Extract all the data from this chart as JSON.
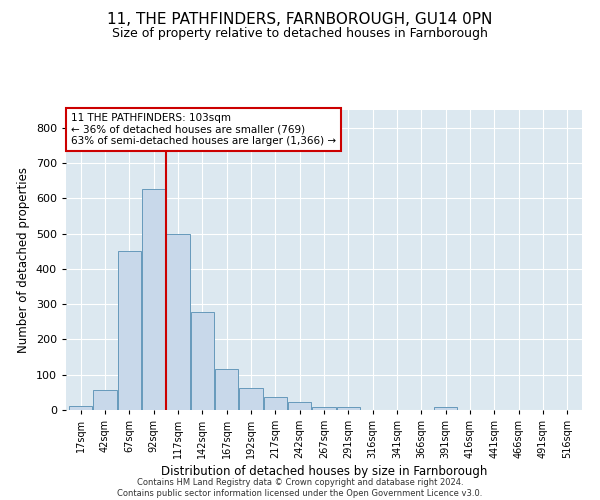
{
  "title": "11, THE PATHFINDERS, FARNBOROUGH, GU14 0PN",
  "subtitle": "Size of property relative to detached houses in Farnborough",
  "xlabel": "Distribution of detached houses by size in Farnborough",
  "ylabel": "Number of detached properties",
  "bar_values": [
    12,
    57,
    450,
    625,
    500,
    278,
    115,
    62,
    37,
    22,
    8,
    8,
    0,
    0,
    0,
    8,
    0,
    0,
    0,
    0,
    0
  ],
  "bar_labels": [
    "17sqm",
    "42sqm",
    "67sqm",
    "92sqm",
    "117sqm",
    "142sqm",
    "167sqm",
    "192sqm",
    "217sqm",
    "242sqm",
    "267sqm",
    "291sqm",
    "316sqm",
    "341sqm",
    "366sqm",
    "391sqm",
    "416sqm",
    "441sqm",
    "466sqm",
    "491sqm",
    "516sqm"
  ],
  "bar_color": "#c8d8ea",
  "bar_edge_color": "#6699bb",
  "vline_x": 3.5,
  "vline_color": "#cc0000",
  "annotation_text": "11 THE PATHFINDERS: 103sqm\n← 36% of detached houses are smaller (769)\n63% of semi-detached houses are larger (1,366) →",
  "annotation_box_color": "#ffffff",
  "annotation_box_edge_color": "#cc0000",
  "ylim": [
    0,
    850
  ],
  "yticks": [
    0,
    100,
    200,
    300,
    400,
    500,
    600,
    700,
    800
  ],
  "plot_bg_color": "#dce8f0",
  "footer_line1": "Contains HM Land Registry data © Crown copyright and database right 2024.",
  "footer_line2": "Contains public sector information licensed under the Open Government Licence v3.0.",
  "title_fontsize": 11,
  "subtitle_fontsize": 9,
  "xlabel_fontsize": 8.5,
  "ylabel_fontsize": 8.5,
  "annotation_fontsize": 7.5,
  "footer_fontsize": 6
}
